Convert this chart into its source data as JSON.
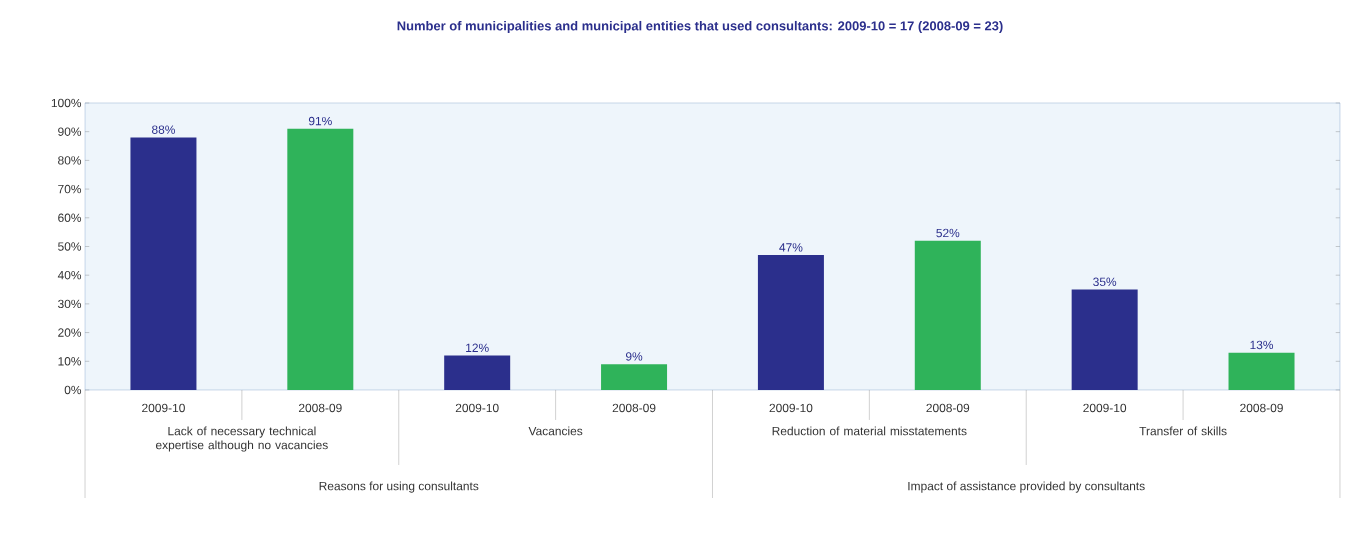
{
  "chart_data": {
    "type": "bar",
    "title": "Number of municipalities and municipal entities that used consultants: 2009-10 = 17 (2008-09 = 23)",
    "categories": [
      "2009-10",
      "2008-09",
      "2009-10",
      "2008-09",
      "2009-10",
      "2008-09",
      "2009-10",
      "2008-09"
    ],
    "values": [
      88,
      91,
      12,
      9,
      47,
      52,
      35,
      13
    ],
    "colors": [
      "#2b2f8c",
      "#2fb35a",
      "#2b2f8c",
      "#2fb35a",
      "#2b2f8c",
      "#2fb35a",
      "#2b2f8c",
      "#2fb35a"
    ],
    "value_labels": [
      "88%",
      "91%",
      "12%",
      "9%",
      "47%",
      "52%",
      "35%",
      "13%"
    ],
    "ylim": [
      0,
      100
    ],
    "yticks": [
      {
        "value": 0,
        "label": "0%"
      },
      {
        "value": 10,
        "label": "10%"
      },
      {
        "value": 20,
        "label": "20%"
      },
      {
        "value": 30,
        "label": "30%"
      },
      {
        "value": 40,
        "label": "40%"
      },
      {
        "value": 50,
        "label": "50%"
      },
      {
        "value": 60,
        "label": "60%"
      },
      {
        "value": 70,
        "label": "70%"
      },
      {
        "value": 80,
        "label": "80%"
      },
      {
        "value": 90,
        "label": "90%"
      },
      {
        "value": 100,
        "label": "100%"
      }
    ],
    "annotations": [
      "Lack of necessary technical expertise although no vacancies",
      "Vacancies",
      "Reduction of material misstatements",
      "Transfer of skills",
      "Reasons for using consultants",
      "Impact of assistance provided by consultants"
    ],
    "grid": false
  }
}
